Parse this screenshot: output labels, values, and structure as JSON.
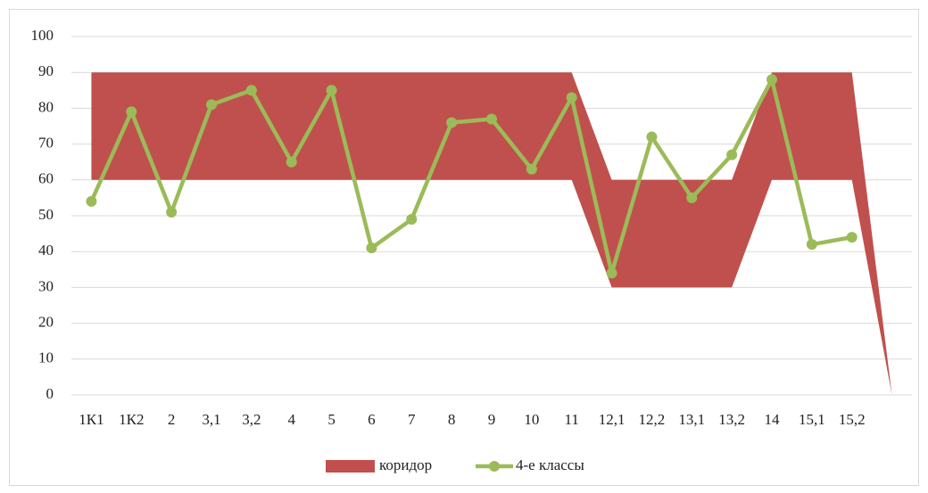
{
  "chart_data": {
    "type": "line",
    "categories": [
      "1К1",
      "1К2",
      "2",
      "3,1",
      "3,2",
      "4",
      "5",
      "6",
      "7",
      "8",
      "9",
      "10",
      "11",
      "12,1",
      "12,2",
      "13,1",
      "13,2",
      "14",
      "15,1",
      "15,2",
      null
    ],
    "series": [
      {
        "name": "коридор",
        "type": "area",
        "color": "#c0504d",
        "values": [
          90,
          90,
          90,
          90,
          90,
          90,
          90,
          90,
          90,
          90,
          90,
          90,
          90,
          60,
          60,
          60,
          60,
          90,
          90,
          90,
          0
        ],
        "base": [
          60,
          60,
          60,
          60,
          60,
          60,
          60,
          60,
          60,
          60,
          60,
          60,
          60,
          30,
          30,
          30,
          30,
          60,
          60,
          60,
          0
        ]
      },
      {
        "name": "4-е классы",
        "type": "line",
        "color": "#9bbb59",
        "values": [
          54,
          79,
          51,
          81,
          85,
          65,
          85,
          41,
          49,
          76,
          77,
          63,
          83,
          34,
          72,
          55,
          67,
          88,
          42,
          44,
          null
        ]
      }
    ],
    "ylim": [
      0,
      100
    ],
    "yticks": [
      0,
      10,
      20,
      30,
      40,
      50,
      60,
      70,
      80,
      90,
      100
    ],
    "grid": true,
    "legend": "bottom"
  }
}
